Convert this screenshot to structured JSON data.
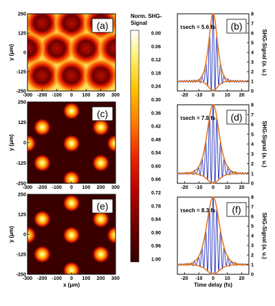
{
  "colors": {
    "background": "#ffffff",
    "map_low": "#3a0000",
    "map_high": "#ffffff",
    "trace": "#1f2fbd",
    "envelope": "#e8781e"
  },
  "colorbar": {
    "title": "Norm. SHG-\nSignal",
    "ticks": [
      "0.00",
      "0.06",
      "0.12",
      "0.18",
      "0.24",
      "0.30",
      "0.36",
      "0.42",
      "0.48",
      "0.54",
      "0.60",
      "0.66",
      "0.72",
      "0.78",
      "0.84",
      "0.90",
      "0.96",
      "1.00"
    ]
  },
  "chart_data": [
    {
      "type": "heatmap",
      "panel_label": "(a)",
      "pattern": "hexagonal ring lattice",
      "xlabel": "",
      "ylabel": "y (μm)",
      "xlim": [
        -300,
        300
      ],
      "ylim": [
        -250,
        250
      ],
      "x_ticks": [
        "-300",
        "-200",
        "-100",
        "0",
        "100",
        "200",
        "300"
      ],
      "y_ticks": [
        "250",
        "125",
        "0",
        "-125",
        "-250"
      ],
      "value_range": [
        0,
        1
      ]
    },
    {
      "type": "line",
      "panel_label": "(b)",
      "annotation": "τsech = 5.6 fs",
      "xlabel": "",
      "ylabel": "SHG-Signal (a. u.)",
      "xlim": [
        -25,
        25
      ],
      "ylim": [
        0,
        8
      ],
      "x_ticks": [
        "-20",
        "-10",
        "0",
        "10",
        "20"
      ],
      "y_ticks": [
        "0",
        "1",
        "2",
        "3",
        "4",
        "5",
        "6",
        "7",
        "8"
      ],
      "tau_fs": 5.6,
      "series": [
        {
          "role": "interferometric autocorrelation",
          "peak": 8,
          "baseline": 1
        },
        {
          "role": "upper envelope",
          "peak": 8,
          "baseline": 1
        },
        {
          "role": "lower envelope",
          "min": 0,
          "baseline": 1
        }
      ]
    },
    {
      "type": "heatmap",
      "panel_label": "(c)",
      "pattern": "hexagonal spot lattice",
      "xlabel": "",
      "ylabel": "y (μm)",
      "xlim": [
        -300,
        300
      ],
      "ylim": [
        -250,
        250
      ],
      "x_ticks": [
        "-300",
        "-200",
        "-100",
        "0",
        "100",
        "200",
        "300"
      ],
      "y_ticks": [
        "250",
        "125",
        "0",
        "-125",
        "-250"
      ],
      "value_range": [
        0,
        1
      ]
    },
    {
      "type": "line",
      "panel_label": "(d)",
      "annotation": "τsech = 7.8 fs",
      "xlabel": "",
      "ylabel": "SHG-Signal (a. u.)",
      "xlim": [
        -25,
        25
      ],
      "ylim": [
        0,
        8
      ],
      "x_ticks": [
        "-20",
        "-10",
        "0",
        "10",
        "20"
      ],
      "y_ticks": [
        "0",
        "1",
        "2",
        "3",
        "4",
        "5",
        "6",
        "7",
        "8"
      ],
      "tau_fs": 7.8,
      "series": [
        {
          "role": "interferometric autocorrelation",
          "peak": 8,
          "baseline": 1
        },
        {
          "role": "upper envelope",
          "peak": 8,
          "baseline": 1
        },
        {
          "role": "lower envelope",
          "min": 0,
          "baseline": 1
        }
      ]
    },
    {
      "type": "heatmap",
      "panel_label": "(e)",
      "pattern": "hexagonal spot lattice",
      "xlabel": "x (μm)",
      "ylabel": "y (μm)",
      "xlim": [
        -300,
        300
      ],
      "ylim": [
        -250,
        250
      ],
      "x_ticks": [
        "-300",
        "-200",
        "-100",
        "0",
        "100",
        "200",
        "300"
      ],
      "y_ticks": [
        "250",
        "125",
        "0",
        "-125",
        "-250"
      ],
      "value_range": [
        0,
        1
      ]
    },
    {
      "type": "line",
      "panel_label": "(f)",
      "annotation": "τsech = 8.3 fs",
      "xlabel": "Time delay (fs)",
      "ylabel": "SHG-Signal (a. u.)",
      "xlim": [
        -25,
        25
      ],
      "ylim": [
        0,
        8
      ],
      "x_ticks": [
        "-20",
        "-10",
        "0",
        "10",
        "20"
      ],
      "y_ticks": [
        "0",
        "1",
        "2",
        "3",
        "4",
        "5",
        "6",
        "7",
        "8"
      ],
      "tau_fs": 8.3,
      "series": [
        {
          "role": "interferometric autocorrelation",
          "peak": 8,
          "baseline": 1
        },
        {
          "role": "upper envelope",
          "peak": 8,
          "baseline": 1
        },
        {
          "role": "lower envelope",
          "min": 0,
          "baseline": 1
        }
      ]
    }
  ]
}
